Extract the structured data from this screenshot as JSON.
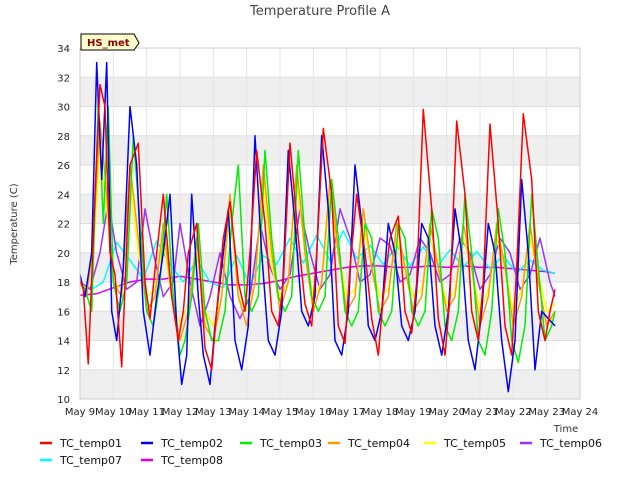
{
  "chart_data": {
    "type": "line",
    "title": "Temperature Profile A",
    "xlabel": "Time",
    "ylabel": "Temperature (C)",
    "ylim": [
      10,
      34
    ],
    "xlim": [
      0,
      15
    ],
    "yticks": [
      10,
      12,
      14,
      16,
      18,
      20,
      22,
      24,
      26,
      28,
      30,
      32,
      34
    ],
    "xticks": [
      {
        "x": 0,
        "label": "May 9"
      },
      {
        "x": 1,
        "label": "May 10"
      },
      {
        "x": 2,
        "label": "May 11"
      },
      {
        "x": 3,
        "label": "May 12"
      },
      {
        "x": 4,
        "label": "May 13"
      },
      {
        "x": 5,
        "label": "May 14"
      },
      {
        "x": 6,
        "label": "May 15"
      },
      {
        "x": 7,
        "label": "May 16"
      },
      {
        "x": 8,
        "label": "May 17"
      },
      {
        "x": 9,
        "label": "May 18"
      },
      {
        "x": 10,
        "label": "May 19"
      },
      {
        "x": 11,
        "label": "May 20"
      },
      {
        "x": 12,
        "label": "May 21"
      },
      {
        "x": 13,
        "label": "May 22"
      },
      {
        "x": 14,
        "label": "May 23"
      },
      {
        "x": 15,
        "label": "May 24"
      }
    ],
    "grid": true,
    "banded_background": true,
    "legend_position": "bottom",
    "annotation": "HS_met",
    "series": [
      {
        "name": "TC_temp01",
        "color": "#ff0000",
        "x": [
          0,
          0.1,
          0.25,
          0.45,
          0.6,
          0.75,
          0.9,
          1.05,
          1.25,
          1.5,
          1.75,
          1.95,
          2.1,
          2.3,
          2.5,
          2.75,
          2.95,
          3.1,
          3.25,
          3.5,
          3.75,
          3.95,
          4.1,
          4.3,
          4.5,
          4.75,
          4.95,
          5.1,
          5.3,
          5.55,
          5.75,
          5.95,
          6.1,
          6.3,
          6.55,
          6.75,
          6.95,
          7.1,
          7.3,
          7.55,
          7.75,
          7.95,
          8.1,
          8.3,
          8.55,
          8.75,
          8.95,
          9.1,
          9.3,
          9.55,
          9.75,
          9.95,
          10.1,
          10.3,
          10.55,
          10.75,
          10.95,
          11.1,
          11.3,
          11.55,
          11.75,
          11.95,
          12.1,
          12.3,
          12.55,
          12.75,
          12.95,
          13.1,
          13.3,
          13.55,
          13.75,
          13.95,
          14.1,
          14.25
        ],
        "y": [
          18.2,
          17.5,
          12.4,
          24,
          31.5,
          30,
          20,
          18.5,
          12.2,
          26,
          27.5,
          18,
          15.5,
          20,
          24,
          17,
          14,
          16,
          20,
          22,
          13.5,
          12,
          16,
          21,
          23.5,
          18,
          16,
          20,
          27,
          22,
          16,
          15,
          18,
          27.5,
          21,
          16.5,
          15,
          20,
          28.5,
          24,
          15,
          13.8,
          19,
          24,
          20,
          15.5,
          13,
          17,
          21,
          22.5,
          16,
          14.5,
          18,
          29.8,
          23,
          15.5,
          13,
          17,
          29,
          24,
          16,
          14,
          18,
          28.8,
          22,
          15,
          13,
          19,
          29.5,
          25,
          16,
          14,
          16,
          17.5
        ]
      },
      {
        "name": "TC_temp02",
        "color": "#0000ff",
        "x": [
          0,
          0.15,
          0.35,
          0.5,
          0.65,
          0.8,
          0.95,
          1.1,
          1.3,
          1.5,
          1.7,
          1.9,
          2.1,
          2.3,
          2.5,
          2.7,
          2.9,
          3.05,
          3.2,
          3.35,
          3.55,
          3.7,
          3.9,
          4.05,
          4.25,
          4.45,
          4.65,
          4.85,
          5.05,
          5.25,
          5.45,
          5.65,
          5.85,
          6.05,
          6.25,
          6.45,
          6.65,
          6.85,
          7.05,
          7.25,
          7.45,
          7.65,
          7.85,
          8.05,
          8.25,
          8.45,
          8.65,
          8.85,
          9.05,
          9.25,
          9.45,
          9.65,
          9.85,
          10.05,
          10.25,
          10.45,
          10.65,
          10.85,
          11.05,
          11.25,
          11.45,
          11.65,
          11.85,
          12.05,
          12.25,
          12.45,
          12.65,
          12.85,
          13.05,
          13.25,
          13.45,
          13.65,
          13.85,
          14.05,
          14.25
        ],
        "y": [
          18.5,
          17,
          20,
          33,
          25,
          33,
          16,
          14,
          19,
          30,
          26,
          16,
          13,
          17,
          20,
          24,
          15,
          11,
          13,
          24,
          17,
          13,
          11,
          15,
          19,
          23,
          14,
          12,
          15,
          28,
          20,
          14,
          13,
          16,
          27,
          22,
          16,
          15,
          17,
          28,
          23,
          14,
          13,
          16,
          26,
          22,
          15,
          14,
          16,
          22,
          20,
          15,
          14,
          16,
          22,
          21,
          15,
          13,
          16,
          23,
          20,
          14,
          12,
          16,
          22,
          20,
          14,
          10.5,
          14,
          25,
          20,
          12,
          16,
          15.5,
          15
        ]
      },
      {
        "name": "TC_temp03",
        "color": "#00ee00",
        "x": [
          0,
          0.15,
          0.35,
          0.55,
          0.7,
          0.85,
          1.0,
          1.2,
          1.4,
          1.6,
          1.8,
          2.0,
          2.2,
          2.4,
          2.6,
          2.8,
          3.0,
          3.15,
          3.35,
          3.55,
          3.75,
          3.95,
          4.15,
          4.35,
          4.55,
          4.75,
          4.95,
          5.15,
          5.35,
          5.55,
          5.75,
          5.95,
          6.15,
          6.35,
          6.55,
          6.75,
          6.95,
          7.15,
          7.35,
          7.55,
          7.75,
          7.95,
          8.15,
          8.35,
          8.55,
          8.75,
          8.95,
          9.15,
          9.35,
          9.55,
          9.75,
          9.95,
          10.15,
          10.35,
          10.55,
          10.75,
          10.95,
          11.15,
          11.35,
          11.55,
          11.75,
          11.95,
          12.15,
          12.35,
          12.55,
          12.75,
          12.95,
          13.15,
          13.35,
          13.55,
          13.75,
          13.95,
          14.15,
          14.25
        ],
        "y": [
          18,
          17.5,
          16,
          30.5,
          22,
          30,
          18,
          16,
          18,
          28,
          22,
          16,
          15,
          18,
          24,
          17,
          13,
          14,
          17,
          22,
          16,
          14,
          14,
          16,
          22,
          26,
          17,
          16,
          17,
          27,
          21,
          17,
          16,
          17,
          27,
          21,
          17,
          16,
          17,
          25,
          21,
          16,
          15,
          16,
          22,
          21,
          16,
          15,
          16,
          22,
          21,
          16,
          15,
          16,
          23,
          21,
          15,
          14,
          16,
          24,
          20,
          14,
          13,
          16,
          23,
          20,
          14,
          12.5,
          15,
          24,
          19,
          14,
          15,
          16
        ]
      },
      {
        "name": "TC_temp04",
        "color": "#ff9900",
        "x": [
          0,
          0.2,
          0.4,
          0.6,
          0.8,
          1.0,
          1.25,
          1.5,
          1.75,
          2.0,
          2.25,
          2.5,
          2.75,
          3.0,
          3.25,
          3.5,
          3.75,
          4.0,
          4.25,
          4.5,
          4.75,
          5.0,
          5.25,
          5.5,
          5.75,
          6.0,
          6.25,
          6.5,
          6.75,
          7.0,
          7.25,
          7.5,
          7.75,
          8.0,
          8.25,
          8.5,
          8.75,
          9.0,
          9.25,
          9.5,
          9.75,
          10.0,
          10.25,
          10.5,
          10.75,
          11.0,
          11.25,
          11.5,
          11.75,
          12.0,
          12.25,
          12.5,
          12.75,
          13.0,
          13.25,
          13.5,
          13.75,
          14.0,
          14.25
        ],
        "y": [
          18,
          17,
          21,
          29,
          24,
          18,
          17,
          26,
          21,
          16,
          17,
          22,
          17,
          14,
          16,
          21,
          15,
          14,
          17,
          24,
          17,
          15,
          18,
          26,
          20,
          16,
          18,
          26,
          20,
          16,
          18,
          25,
          20,
          16,
          17,
          23,
          19,
          16,
          17,
          22,
          19,
          16,
          17,
          22,
          19,
          16,
          17,
          22,
          19,
          15,
          17,
          22,
          19,
          15,
          17,
          22,
          18,
          15,
          16
        ]
      },
      {
        "name": "TC_temp05",
        "color": "#ffff00",
        "x": [
          0,
          0.2,
          0.4,
          0.6,
          0.8,
          1.0,
          1.25,
          1.5,
          1.75,
          2.0,
          2.25,
          2.5,
          2.75,
          3.0,
          3.25,
          3.5,
          3.75,
          4.0,
          4.25,
          4.5,
          4.75,
          5.0,
          5.25,
          5.5,
          5.75,
          6.0,
          6.25,
          6.5,
          6.75,
          7.0,
          7.25,
          7.5,
          7.75,
          8.0,
          8.25,
          8.5,
          8.75,
          9.0,
          9.25,
          9.5,
          9.75,
          10.0,
          10.25,
          10.5,
          10.75,
          11.0,
          11.25,
          11.5,
          11.75,
          12.0,
          12.25,
          12.5,
          12.75,
          13.0,
          13.25,
          13.5,
          13.75,
          14.0,
          14.25
        ],
        "y": [
          18,
          17.5,
          20,
          27,
          23,
          18,
          17.5,
          25,
          20,
          17,
          17.5,
          21,
          17,
          15,
          16.5,
          20,
          16,
          15,
          17,
          23,
          17,
          16,
          18,
          25,
          19,
          17,
          18,
          25,
          20,
          17,
          18,
          24,
          20,
          17,
          17.5,
          22,
          19,
          17,
          17.5,
          21,
          19,
          17,
          17.5,
          21,
          19,
          16.5,
          17.5,
          21,
          19,
          16,
          17.5,
          21,
          19,
          16,
          17.5,
          21,
          18.5,
          16,
          16.5
        ]
      },
      {
        "name": "TC_temp06",
        "color": "#9933ff",
        "x": [
          0,
          0.3,
          0.6,
          0.85,
          1.1,
          1.4,
          1.7,
          1.95,
          2.2,
          2.5,
          2.8,
          3.0,
          3.3,
          3.6,
          3.9,
          4.2,
          4.5,
          4.8,
          5.1,
          5.4,
          5.7,
          6.0,
          6.3,
          6.6,
          6.9,
          7.2,
          7.5,
          7.8,
          8.1,
          8.4,
          8.7,
          9.0,
          9.3,
          9.6,
          9.9,
          10.2,
          10.5,
          10.8,
          11.1,
          11.4,
          11.7,
          12.0,
          12.3,
          12.6,
          12.9,
          13.2,
          13.5,
          13.8,
          14.1,
          14.25
        ],
        "y": [
          18,
          17.5,
          20,
          23.5,
          20,
          17.5,
          18,
          23,
          20,
          17,
          18,
          22,
          18,
          15,
          17,
          20,
          17,
          15.5,
          17,
          22,
          19,
          17.5,
          18.5,
          23,
          20,
          17.5,
          18.5,
          23,
          21,
          18,
          18.5,
          21,
          20.5,
          18,
          18.5,
          21,
          20,
          18,
          18.5,
          21,
          20,
          17.5,
          18.5,
          21,
          20,
          17.5,
          18.5,
          21,
          18,
          17
        ]
      },
      {
        "name": "TC_temp07",
        "color": "#00ffff",
        "x": [
          0,
          0.35,
          0.7,
          1.1,
          1.5,
          1.9,
          2.3,
          2.7,
          3.1,
          3.5,
          3.9,
          4.3,
          4.7,
          5.1,
          5.5,
          5.9,
          6.3,
          6.7,
          7.1,
          7.5,
          7.9,
          8.3,
          8.7,
          9.1,
          9.5,
          9.9,
          10.3,
          10.7,
          11.1,
          11.5,
          11.9,
          12.3,
          12.7,
          13.1,
          13.5,
          13.9,
          14.25
        ],
        "y": [
          18,
          17.5,
          18,
          20.7,
          19.5,
          18.2,
          20.8,
          19.2,
          18,
          19.5,
          18,
          17.6,
          19.8,
          17.8,
          19.8,
          19.2,
          21,
          19.3,
          21.2,
          19.5,
          21.5,
          19.6,
          20.5,
          19.2,
          20.5,
          19.1,
          20.4,
          19,
          20.2,
          19,
          20.1,
          18.9,
          19.8,
          18.6,
          19.5,
          18.8,
          18.6
        ]
      },
      {
        "name": "TC_temp08",
        "color": "#dd00dd",
        "x": [
          0,
          0.5,
          1.0,
          1.5,
          2.0,
          2.5,
          3.0,
          3.5,
          4.0,
          4.5,
          5.0,
          5.5,
          6.0,
          6.5,
          7.0,
          7.5,
          8.0,
          8.5,
          9.0,
          9.5,
          10.0,
          10.5,
          11.0,
          11.5,
          12.0,
          12.5,
          13.0,
          13.5,
          14.0,
          14.25
        ],
        "y": [
          17.1,
          17.2,
          17.6,
          18,
          18.2,
          18.2,
          18.4,
          18.2,
          18,
          17.8,
          17.8,
          17.9,
          18.1,
          18.4,
          18.6,
          18.8,
          19,
          19.1,
          19.1,
          19,
          19,
          19.1,
          19,
          19.1,
          19,
          19,
          18.9,
          18.8,
          18.7,
          18.6
        ]
      }
    ]
  }
}
